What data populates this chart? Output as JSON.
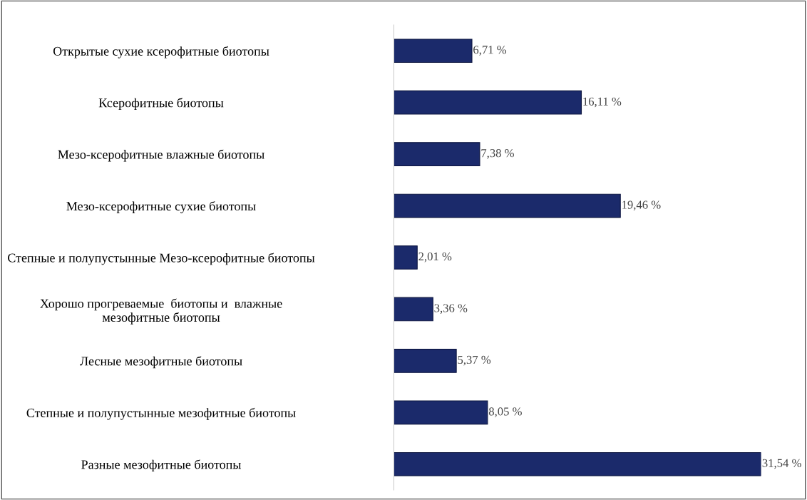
{
  "chart_data": {
    "type": "bar",
    "orientation": "horizontal",
    "color": "#1b2a6b",
    "categories": [
      "Открытые сухие ксерофитные биотопы",
      "Ксерофитные биотопы",
      "Мезо-ксерофитные влажные биотопы",
      "Мезо-ксерофитные сухие биотопы",
      "Степные и полупустынные Мезо-ксерофитные биотопы",
      "Хорошо прогреваемые  биотопы и  влажные\nмезофитные биотопы",
      "Лесные мезофитные биотопы",
      "Степные и полупустынные мезофитные биотопы",
      "Разные мезофитные биотопы"
    ],
    "values": [
      6.71,
      16.11,
      7.38,
      19.46,
      2.01,
      3.36,
      5.37,
      8.05,
      31.54
    ],
    "value_labels": [
      "6,71 %",
      "16,11 %",
      "7,38 %",
      "19,46 %",
      "2,01 %",
      "3,36 %",
      "5,37 %",
      "8,05 %",
      "31,54 %"
    ],
    "grid": false
  }
}
